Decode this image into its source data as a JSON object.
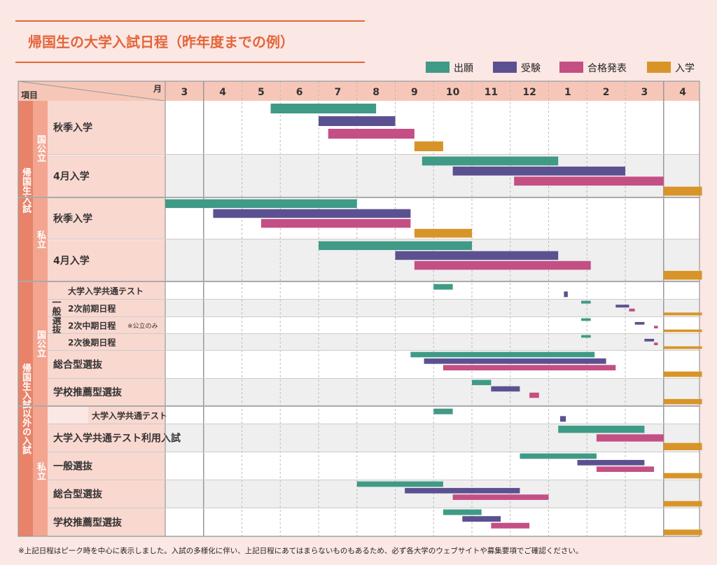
{
  "title": "帰国生の大学入試日程（昨年度までの例）",
  "legend": [
    {
      "label": "出願",
      "color": "#3f9a86"
    },
    {
      "label": "受験",
      "color": "#5c5190"
    },
    {
      "label": "合格発表",
      "color": "#c44f84"
    },
    {
      "label": "入学",
      "color": "#d89429"
    }
  ],
  "header": {
    "item_label": "項目",
    "month_label": "月"
  },
  "months": [
    "3",
    "4",
    "5",
    "6",
    "7",
    "8",
    "9",
    "10",
    "11",
    "12",
    "1",
    "2",
    "3",
    "4"
  ],
  "groups": {
    "kikoku": "帰国生入試",
    "other": "帰国生入試以外の入試",
    "kokko1": "国公立",
    "shiritsu1": "私立",
    "kokko2": "国公立",
    "ippan": "一般選抜",
    "shiritsu2": "私立"
  },
  "footnote": "※上記日程はピーク時を中心に表示しました。入試の多様化に伴い、上記日程にあてはまらないものもあるため、必ず各大学のウェブサイトや募集要項でご確認ください。",
  "row_note": "※公立のみ",
  "chart_data": {
    "type": "gantt",
    "title": "帰国生の大学入試日程（昨年度までの例）",
    "x_unit": "month index (0 = start of March, 14 = end of following April)",
    "x_ticks": [
      "3",
      "4",
      "5",
      "6",
      "7",
      "8",
      "9",
      "10",
      "11",
      "12",
      "1",
      "2",
      "3",
      "4"
    ],
    "series_names": [
      "出願",
      "受験",
      "合格発表",
      "入学"
    ],
    "rows": [
      {
        "label": "秋季入学",
        "group": "帰国生入試 / 国公立",
        "bars": [
          {
            "series": 0,
            "start": 2.75,
            "end": 5.5
          },
          {
            "series": 1,
            "start": 4.0,
            "end": 6.0
          },
          {
            "series": 2,
            "start": 4.25,
            "end": 6.5
          },
          {
            "series": 3,
            "start": 6.5,
            "end": 7.25
          }
        ]
      },
      {
        "label": "4月入学",
        "group": "帰国生入試 / 国公立",
        "bars": [
          {
            "series": 0,
            "start": 6.7,
            "end": 10.25
          },
          {
            "series": 1,
            "start": 7.5,
            "end": 12.0
          },
          {
            "series": 2,
            "start": 9.1,
            "end": 13.0
          },
          {
            "series": 3,
            "start": 13.0,
            "end": 14.0
          }
        ]
      },
      {
        "label": "秋季入学",
        "group": "帰国生入試 / 私立",
        "bars": [
          {
            "series": 0,
            "start": 0.0,
            "end": 5.0
          },
          {
            "series": 1,
            "start": 1.25,
            "end": 6.4
          },
          {
            "series": 2,
            "start": 2.5,
            "end": 6.4
          },
          {
            "series": 3,
            "start": 6.5,
            "end": 8.0
          }
        ]
      },
      {
        "label": "4月入学",
        "group": "帰国生入試 / 私立",
        "bars": [
          {
            "series": 0,
            "start": 4.0,
            "end": 8.0
          },
          {
            "series": 1,
            "start": 6.0,
            "end": 10.25
          },
          {
            "series": 2,
            "start": 6.5,
            "end": 11.1
          },
          {
            "series": 3,
            "start": 13.0,
            "end": 14.0
          }
        ]
      },
      {
        "label": "大学入学共通テスト",
        "group": "帰国生入試以外の入試 / 国公立 / 一般選抜",
        "bars": [
          {
            "series": 0,
            "start": 7.0,
            "end": 7.5
          },
          {
            "series": 1,
            "start": 10.4,
            "end": 10.5
          }
        ]
      },
      {
        "label": "2次前期日程",
        "group": "帰国生入試以外の入試 / 国公立 / 一般選抜",
        "bars": [
          {
            "series": 0,
            "start": 10.85,
            "end": 11.1
          },
          {
            "series": 1,
            "start": 11.75,
            "end": 12.1
          },
          {
            "series": 2,
            "start": 12.1,
            "end": 12.25
          },
          {
            "series": 3,
            "start": 13.0,
            "end": 14.0
          }
        ]
      },
      {
        "label": "2次中期日程",
        "group": "帰国生入試以外の入試 / 国公立 / 一般選抜",
        "bars": [
          {
            "series": 0,
            "start": 10.85,
            "end": 11.1
          },
          {
            "series": 1,
            "start": 12.25,
            "end": 12.5
          },
          {
            "series": 2,
            "start": 12.75,
            "end": 12.85
          },
          {
            "series": 3,
            "start": 13.0,
            "end": 14.0
          }
        ]
      },
      {
        "label": "2次後期日程",
        "group": "帰国生入試以外の入試 / 国公立 / 一般選抜",
        "bars": [
          {
            "series": 0,
            "start": 10.85,
            "end": 11.1
          },
          {
            "series": 1,
            "start": 12.5,
            "end": 12.75
          },
          {
            "series": 2,
            "start": 12.75,
            "end": 12.85
          },
          {
            "series": 3,
            "start": 13.0,
            "end": 14.0
          }
        ]
      },
      {
        "label": "総合型選抜",
        "group": "帰国生入試以外の入試 / 国公立",
        "bars": [
          {
            "series": 0,
            "start": 6.4,
            "end": 11.2
          },
          {
            "series": 1,
            "start": 6.75,
            "end": 11.5
          },
          {
            "series": 2,
            "start": 7.25,
            "end": 11.75
          },
          {
            "series": 3,
            "start": 13.0,
            "end": 14.0
          }
        ]
      },
      {
        "label": "学校推薦型選抜",
        "group": "帰国生入試以外の入試 / 国公立",
        "bars": [
          {
            "series": 0,
            "start": 8.0,
            "end": 8.5
          },
          {
            "series": 1,
            "start": 8.5,
            "end": 9.25
          },
          {
            "series": 2,
            "start": 9.5,
            "end": 9.75
          },
          {
            "series": 3,
            "start": 13.0,
            "end": 14.0
          }
        ]
      },
      {
        "label": "大学入学共通テスト",
        "group": "帰国生入試以外の入試 / 私立",
        "bars": [
          {
            "series": 0,
            "start": 7.0,
            "end": 7.5
          },
          {
            "series": 1,
            "start": 10.3,
            "end": 10.45
          }
        ]
      },
      {
        "label": "大学入学共通テスト利用入試",
        "group": "帰国生入試以外の入試 / 私立",
        "bars": [
          {
            "series": 0,
            "start": 10.25,
            "end": 12.5
          },
          {
            "series": 2,
            "start": 11.25,
            "end": 13.0
          },
          {
            "series": 3,
            "start": 13.0,
            "end": 14.0
          }
        ]
      },
      {
        "label": "一般選抜",
        "group": "帰国生入試以外の入試 / 私立",
        "bars": [
          {
            "series": 0,
            "start": 9.25,
            "end": 11.25
          },
          {
            "series": 1,
            "start": 10.75,
            "end": 12.5
          },
          {
            "series": 2,
            "start": 11.25,
            "end": 12.75
          },
          {
            "series": 3,
            "start": 13.0,
            "end": 14.0
          }
        ]
      },
      {
        "label": "総合型選抜",
        "group": "帰国生入試以外の入試 / 私立",
        "bars": [
          {
            "series": 0,
            "start": 5.0,
            "end": 7.25
          },
          {
            "series": 1,
            "start": 6.25,
            "end": 9.25
          },
          {
            "series": 2,
            "start": 7.5,
            "end": 10.0
          },
          {
            "series": 3,
            "start": 13.0,
            "end": 14.0
          }
        ]
      },
      {
        "label": "学校推薦型選抜",
        "group": "帰国生入試以外の入試 / 私立",
        "bars": [
          {
            "series": 0,
            "start": 7.25,
            "end": 8.25
          },
          {
            "series": 1,
            "start": 7.75,
            "end": 8.75
          },
          {
            "series": 2,
            "start": 8.5,
            "end": 9.5
          },
          {
            "series": 3,
            "start": 13.0,
            "end": 14.0
          }
        ]
      }
    ]
  }
}
